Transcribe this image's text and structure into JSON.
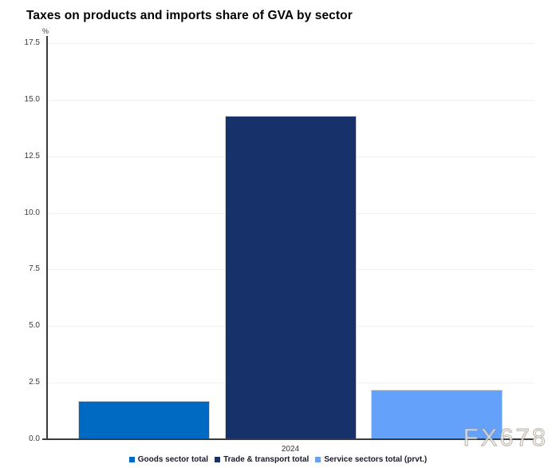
{
  "page": {
    "background": "#ffffff"
  },
  "chart_data": {
    "type": "bar",
    "title": "Taxes on products and imports share of GVA by sector",
    "unit_label": "%",
    "xlabel": "2024",
    "categories": [
      "2024"
    ],
    "series": [
      {
        "name": "Goods sector total",
        "value": 1.7,
        "color": "#0069c2"
      },
      {
        "name": "Trade & transport total",
        "value": 14.3,
        "color": "#17316b"
      },
      {
        "name": "Service sectors total (prvt.)",
        "value": 2.2,
        "color": "#63a1fb"
      }
    ],
    "ylim": [
      0,
      17.5
    ],
    "yticks": [
      0,
      2.5,
      5,
      7.5,
      10,
      12.5,
      15,
      17.5
    ],
    "grid": true,
    "legend_position": "bottom"
  },
  "watermark": {
    "text": "FX678"
  },
  "colors": {
    "gridline": "#efefef",
    "axis": "#3b3b3b",
    "tick_label": "#3a3a3a",
    "legend_text": "#1a1a2e"
  }
}
